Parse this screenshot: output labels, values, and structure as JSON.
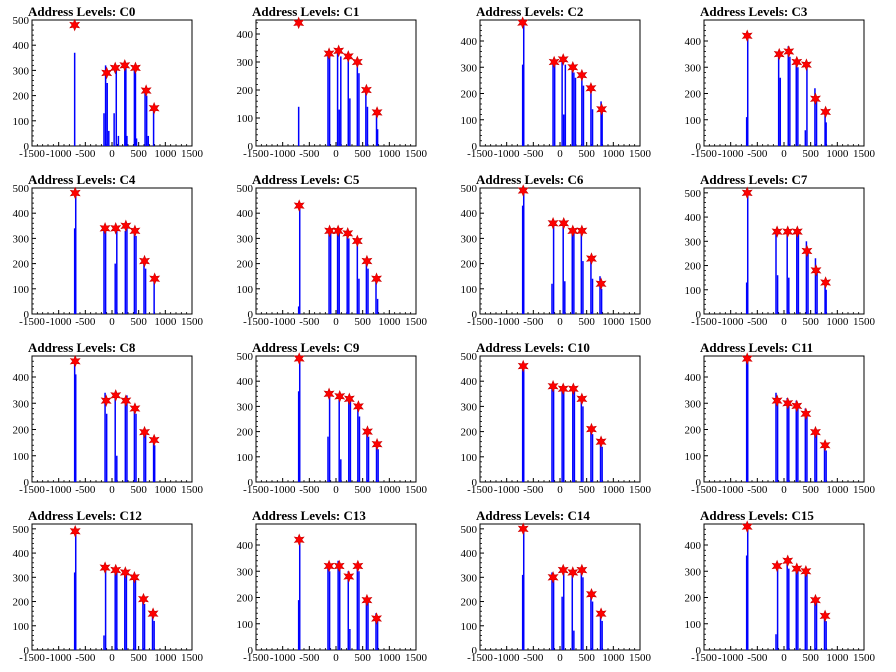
{
  "chart_data": [
    {
      "type": "bar",
      "title": "Address Levels: C0",
      "xlim": [
        -1500,
        1500
      ],
      "ylim": [
        0,
        500
      ],
      "xticks": [
        -1500,
        -1000,
        -500,
        0,
        500,
        1000,
        1500
      ],
      "yticks": [
        0,
        100,
        200,
        300,
        400,
        500
      ],
      "bars": {
        "x": [
          -700,
          -150,
          -120,
          -90,
          -60,
          40,
          80,
          120,
          240,
          260,
          280,
          420,
          440,
          460,
          620,
          650,
          680,
          780
        ],
        "y": [
          370,
          130,
          320,
          250,
          60,
          130,
          300,
          40,
          310,
          320,
          40,
          300,
          290,
          30,
          210,
          200,
          40,
          140
        ]
      },
      "peaks": {
        "x": [
          -700,
          -100,
          60,
          240,
          440,
          640,
          790
        ],
        "y": [
          480,
          290,
          310,
          320,
          310,
          220,
          150
        ]
      }
    },
    {
      "type": "bar",
      "title": "Address Levels: C1",
      "xlim": [
        -1500,
        1500
      ],
      "ylim": [
        0,
        450
      ],
      "xticks": [
        -1500,
        -1000,
        -500,
        0,
        500,
        1000,
        1500
      ],
      "yticks": [
        0,
        100,
        200,
        300,
        400
      ],
      "bars": {
        "x": [
          -700,
          -150,
          -120,
          30,
          60,
          90,
          230,
          260,
          400,
          430,
          560,
          590,
          760,
          780
        ],
        "y": [
          140,
          330,
          320,
          340,
          130,
          320,
          320,
          170,
          300,
          260,
          200,
          140,
          130,
          60
        ]
      },
      "peaks": {
        "x": [
          -700,
          -130,
          50,
          230,
          400,
          570,
          770
        ],
        "y": [
          440,
          330,
          340,
          320,
          300,
          200,
          120
        ]
      }
    },
    {
      "type": "bar",
      "title": "Address Levels: C2",
      "xlim": [
        -1500,
        1500
      ],
      "ylim": [
        0,
        480
      ],
      "xticks": [
        -1500,
        -1000,
        -500,
        0,
        500,
        1000,
        1500
      ],
      "yticks": [
        0,
        100,
        200,
        300,
        400
      ],
      "bars": {
        "x": [
          -700,
          -680,
          -130,
          -100,
          40,
          70,
          100,
          230,
          260,
          290,
          410,
          440,
          580,
          610,
          770,
          790
        ],
        "y": [
          310,
          470,
          320,
          310,
          330,
          120,
          310,
          300,
          280,
          260,
          270,
          230,
          220,
          140,
          170,
          140
        ]
      },
      "peaks": {
        "x": [
          -700,
          -110,
          60,
          240,
          410,
          580,
          780
        ],
        "y": [
          470,
          320,
          330,
          300,
          270,
          220,
          140
        ]
      }
    },
    {
      "type": "bar",
      "title": "Address Levels: C3",
      "xlim": [
        -1500,
        1500
      ],
      "ylim": [
        0,
        480
      ],
      "xticks": [
        -1500,
        -1000,
        -500,
        0,
        500,
        1000,
        1500
      ],
      "yticks": [
        0,
        100,
        200,
        300,
        400
      ],
      "bars": {
        "x": [
          -700,
          -680,
          -100,
          -70,
          80,
          110,
          230,
          260,
          400,
          430,
          580,
          610,
          770,
          790
        ],
        "y": [
          110,
          420,
          340,
          260,
          380,
          340,
          330,
          300,
          60,
          310,
          220,
          180,
          130,
          90
        ]
      },
      "peaks": {
        "x": [
          -690,
          -90,
          90,
          240,
          420,
          590,
          780
        ],
        "y": [
          420,
          350,
          360,
          320,
          310,
          180,
          130
        ]
      }
    },
    {
      "type": "bar",
      "title": "Address Levels: C4",
      "xlim": [
        -1500,
        1500
      ],
      "ylim": [
        0,
        500
      ],
      "xticks": [
        -1500,
        -1000,
        -500,
        0,
        500,
        1000,
        1500
      ],
      "yticks": [
        0,
        100,
        200,
        300,
        400,
        500
      ],
      "bars": {
        "x": [
          -700,
          -680,
          -150,
          -120,
          60,
          90,
          250,
          280,
          420,
          450,
          600,
          630,
          790
        ],
        "y": [
          340,
          480,
          340,
          330,
          200,
          340,
          330,
          340,
          320,
          310,
          200,
          180,
          140
        ]
      },
      "peaks": {
        "x": [
          -690,
          -130,
          70,
          260,
          430,
          610,
          800
        ],
        "y": [
          480,
          340,
          340,
          350,
          330,
          210,
          140
        ]
      }
    },
    {
      "type": "bar",
      "title": "Address Levels: C5",
      "xlim": [
        -1500,
        1500
      ],
      "ylim": [
        0,
        500
      ],
      "xticks": [
        -1500,
        -1000,
        -500,
        0,
        500,
        1000,
        1500
      ],
      "yticks": [
        0,
        100,
        200,
        300,
        400,
        500
      ],
      "bars": {
        "x": [
          -700,
          -680,
          -130,
          -100,
          30,
          60,
          210,
          240,
          400,
          430,
          570,
          600,
          750,
          780
        ],
        "y": [
          30,
          430,
          340,
          330,
          340,
          330,
          320,
          300,
          280,
          140,
          200,
          180,
          140,
          60
        ]
      },
      "peaks": {
        "x": [
          -690,
          -120,
          40,
          220,
          400,
          580,
          760
        ],
        "y": [
          430,
          330,
          330,
          320,
          290,
          210,
          140
        ]
      }
    },
    {
      "type": "bar",
      "title": "Address Levels: C6",
      "xlim": [
        -1500,
        1500
      ],
      "ylim": [
        0,
        500
      ],
      "xticks": [
        -1500,
        -1000,
        -500,
        0,
        500,
        1000,
        1500
      ],
      "yticks": [
        0,
        100,
        200,
        300,
        400,
        500
      ],
      "bars": {
        "x": [
          -700,
          -680,
          -150,
          -120,
          60,
          90,
          230,
          260,
          400,
          430,
          580,
          610,
          750,
          780
        ],
        "y": [
          430,
          490,
          120,
          360,
          360,
          130,
          320,
          320,
          330,
          210,
          210,
          140,
          150,
          100
        ]
      },
      "peaks": {
        "x": [
          -690,
          -130,
          70,
          240,
          410,
          590,
          770
        ],
        "y": [
          490,
          360,
          360,
          330,
          330,
          220,
          120
        ]
      }
    },
    {
      "type": "bar",
      "title": "Address Levels: C7",
      "xlim": [
        -1500,
        1500
      ],
      "ylim": [
        0,
        520
      ],
      "xticks": [
        -1500,
        -1000,
        -500,
        0,
        500,
        1000,
        1500
      ],
      "yticks": [
        0,
        100,
        200,
        300,
        400,
        500
      ],
      "bars": {
        "x": [
          -700,
          -680,
          -150,
          -120,
          60,
          90,
          240,
          270,
          420,
          450,
          590,
          620,
          770,
          790
        ],
        "y": [
          130,
          500,
          340,
          160,
          340,
          150,
          340,
          350,
          300,
          250,
          230,
          180,
          130,
          100
        ]
      },
      "peaks": {
        "x": [
          -690,
          -130,
          70,
          250,
          430,
          600,
          780
        ],
        "y": [
          500,
          340,
          340,
          340,
          260,
          180,
          130
        ]
      }
    },
    {
      "type": "bar",
      "title": "Address Levels: C8",
      "xlim": [
        -1500,
        1500
      ],
      "ylim": [
        0,
        480
      ],
      "xticks": [
        -1500,
        -1000,
        -500,
        0,
        500,
        1000,
        1500
      ],
      "yticks": [
        0,
        100,
        200,
        300,
        400
      ],
      "bars": {
        "x": [
          -700,
          -680,
          -130,
          -100,
          60,
          90,
          250,
          280,
          420,
          450,
          600,
          630,
          780,
          800
        ],
        "y": [
          470,
          410,
          340,
          260,
          340,
          100,
          300,
          330,
          290,
          260,
          200,
          180,
          160,
          140
        ]
      },
      "peaks": {
        "x": [
          -690,
          -110,
          70,
          260,
          430,
          610,
          790
        ],
        "y": [
          460,
          310,
          330,
          310,
          280,
          190,
          160
        ]
      }
    },
    {
      "type": "bar",
      "title": "Address Levels: C9",
      "xlim": [
        -1500,
        1500
      ],
      "ylim": [
        0,
        500
      ],
      "xticks": [
        -1500,
        -1000,
        -500,
        0,
        500,
        1000,
        1500
      ],
      "yticks": [
        0,
        100,
        200,
        300,
        400,
        500
      ],
      "bars": {
        "x": [
          -700,
          -680,
          -150,
          -120,
          60,
          90,
          240,
          270,
          410,
          440,
          580,
          610,
          760,
          790
        ],
        "y": [
          360,
          490,
          180,
          360,
          340,
          90,
          330,
          320,
          300,
          260,
          200,
          180,
          150,
          130
        ]
      },
      "peaks": {
        "x": [
          -690,
          -130,
          70,
          250,
          420,
          590,
          770
        ],
        "y": [
          490,
          350,
          340,
          330,
          300,
          200,
          150
        ]
      }
    },
    {
      "type": "bar",
      "title": "Address Levels: C10",
      "xlim": [
        -1500,
        1500
      ],
      "ylim": [
        0,
        500
      ],
      "xticks": [
        -1500,
        -1000,
        -500,
        0,
        500,
        1000,
        1500
      ],
      "yticks": [
        0,
        100,
        200,
        300,
        400,
        500
      ],
      "bars": {
        "x": [
          -700,
          -680,
          -150,
          -120,
          40,
          70,
          240,
          270,
          400,
          430,
          580,
          610,
          760,
          790
        ],
        "y": [
          460,
          450,
          380,
          370,
          380,
          360,
          380,
          360,
          340,
          300,
          200,
          190,
          160,
          140
        ]
      },
      "peaks": {
        "x": [
          -690,
          -130,
          60,
          250,
          410,
          590,
          770
        ],
        "y": [
          460,
          380,
          370,
          370,
          330,
          210,
          160
        ]
      }
    },
    {
      "type": "bar",
      "title": "Address Levels: C11",
      "xlim": [
        -1500,
        1500
      ],
      "ylim": [
        0,
        480
      ],
      "xticks": [
        -1500,
        -1000,
        -500,
        0,
        500,
        1000,
        1500
      ],
      "yticks": [
        0,
        100,
        200,
        300,
        400
      ],
      "bars": {
        "x": [
          -700,
          -680,
          -150,
          -120,
          60,
          90,
          230,
          260,
          400,
          430,
          580,
          610,
          760,
          790
        ],
        "y": [
          480,
          460,
          340,
          320,
          320,
          300,
          310,
          290,
          280,
          250,
          200,
          180,
          150,
          120
        ]
      },
      "peaks": {
        "x": [
          -690,
          -130,
          70,
          240,
          410,
          590,
          770
        ],
        "y": [
          470,
          310,
          300,
          290,
          260,
          190,
          140
        ]
      }
    },
    {
      "type": "bar",
      "title": "Address Levels: C12",
      "xlim": [
        -1500,
        1500
      ],
      "ylim": [
        0,
        520
      ],
      "xticks": [
        -1500,
        -1000,
        -500,
        0,
        500,
        1000,
        1500
      ],
      "yticks": [
        0,
        100,
        200,
        300,
        400,
        500
      ],
      "bars": {
        "x": [
          -700,
          -680,
          -150,
          -120,
          60,
          90,
          240,
          270,
          410,
          440,
          580,
          610,
          760,
          790
        ],
        "y": [
          320,
          490,
          60,
          340,
          330,
          320,
          320,
          310,
          310,
          290,
          210,
          190,
          150,
          120
        ]
      },
      "peaks": {
        "x": [
          -690,
          -130,
          70,
          250,
          420,
          590,
          770
        ],
        "y": [
          490,
          340,
          330,
          320,
          300,
          210,
          150
        ]
      }
    },
    {
      "type": "bar",
      "title": "Address Levels: C13",
      "xlim": [
        -1500,
        1500
      ],
      "ylim": [
        0,
        480
      ],
      "xticks": [
        -1500,
        -1000,
        -500,
        0,
        500,
        1000,
        1500
      ],
      "yticks": [
        0,
        100,
        200,
        300,
        400
      ],
      "bars": {
        "x": [
          -700,
          -680,
          -150,
          -120,
          40,
          70,
          230,
          260,
          400,
          430,
          570,
          600,
          750,
          780
        ],
        "y": [
          190,
          420,
          330,
          300,
          340,
          320,
          300,
          80,
          330,
          300,
          200,
          190,
          140,
          120
        ]
      },
      "peaks": {
        "x": [
          -690,
          -130,
          60,
          240,
          410,
          580,
          760
        ],
        "y": [
          420,
          320,
          320,
          280,
          320,
          190,
          120
        ]
      }
    },
    {
      "type": "bar",
      "title": "Address Levels: C14",
      "xlim": [
        -1500,
        1500
      ],
      "ylim": [
        0,
        520
      ],
      "xticks": [
        -1500,
        -1000,
        -500,
        0,
        500,
        1000,
        1500
      ],
      "yticks": [
        0,
        100,
        200,
        300,
        400,
        500
      ],
      "bars": {
        "x": [
          -700,
          -680,
          -150,
          -120,
          40,
          70,
          230,
          260,
          400,
          430,
          580,
          610,
          760,
          790
        ],
        "y": [
          310,
          500,
          320,
          290,
          220,
          340,
          330,
          80,
          340,
          300,
          230,
          200,
          160,
          120
        ]
      },
      "peaks": {
        "x": [
          -690,
          -130,
          60,
          240,
          410,
          590,
          770
        ],
        "y": [
          500,
          300,
          330,
          320,
          330,
          230,
          150
        ]
      }
    },
    {
      "type": "bar",
      "title": "Address Levels: C15",
      "xlim": [
        -1500,
        1500
      ],
      "ylim": [
        0,
        480
      ],
      "xticks": [
        -1500,
        -1000,
        -500,
        0,
        500,
        1000,
        1500
      ],
      "yticks": [
        0,
        100,
        200,
        300,
        400
      ],
      "bars": {
        "x": [
          -700,
          -680,
          -150,
          -120,
          60,
          90,
          230,
          260,
          400,
          430,
          580,
          610,
          760,
          790
        ],
        "y": [
          360,
          480,
          60,
          330,
          350,
          310,
          320,
          310,
          300,
          290,
          200,
          180,
          130,
          110
        ]
      },
      "peaks": {
        "x": [
          -690,
          -130,
          70,
          240,
          410,
          590,
          770
        ],
        "y": [
          470,
          320,
          340,
          310,
          300,
          190,
          130
        ]
      }
    }
  ],
  "colors": {
    "bars": "#0000ff",
    "markers": "#ff0000",
    "axes": "#000000"
  }
}
